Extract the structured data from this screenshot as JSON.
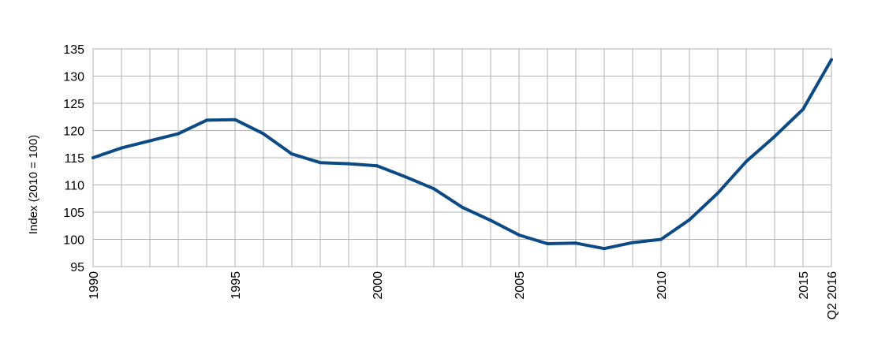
{
  "chart_data": {
    "type": "line",
    "title": "",
    "xlabel": "",
    "ylabel": "Index (2010 = 100)",
    "ylim": [
      95,
      135
    ],
    "yticks": [
      95,
      100,
      105,
      110,
      115,
      120,
      125,
      130,
      135
    ],
    "x": [
      1990,
      1991,
      1992,
      1993,
      1994,
      1995,
      1996,
      1997,
      1998,
      1999,
      2000,
      2001,
      2002,
      2003,
      2004,
      2005,
      2006,
      2007,
      2008,
      2009,
      2010,
      2011,
      2012,
      2013,
      2014,
      2015,
      "Q2 2016"
    ],
    "xtick_labels": [
      "1990",
      "1995",
      "2000",
      "2005",
      "2010",
      "2015",
      "Q2 2016"
    ],
    "grid": true,
    "series_color": "#0b4a84",
    "series": [
      {
        "name": "",
        "values": [
          115.0,
          116.8,
          118.1,
          119.4,
          121.9,
          122.0,
          119.4,
          115.7,
          114.1,
          113.9,
          113.5,
          111.5,
          109.3,
          105.9,
          103.5,
          100.8,
          99.2,
          99.3,
          98.3,
          99.4,
          100.0,
          103.6,
          108.5,
          114.3,
          118.9,
          123.9,
          133.0
        ]
      }
    ]
  }
}
